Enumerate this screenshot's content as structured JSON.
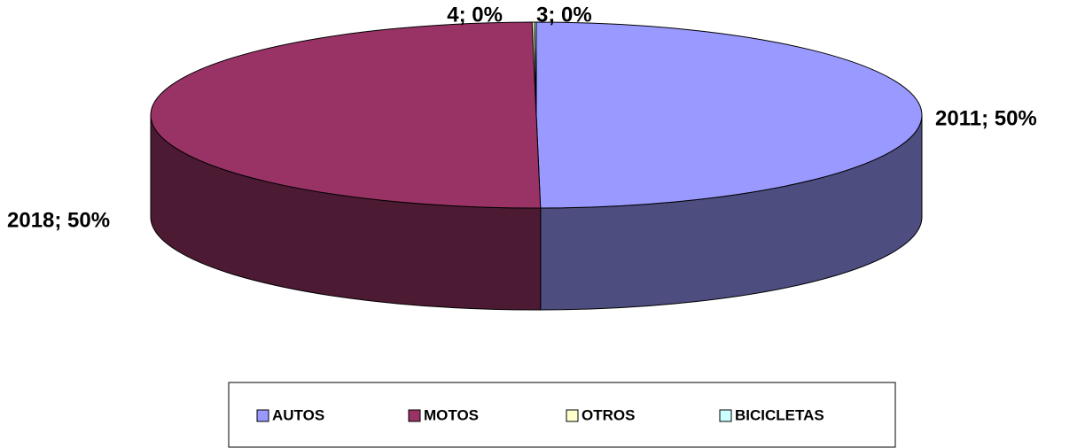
{
  "chart_data": {
    "type": "pie",
    "categories": [
      "AUTOS",
      "MOTOS",
      "OTROS",
      "BICICLETAS"
    ],
    "values": [
      2011,
      2018,
      4,
      3
    ],
    "value_labels": [
      "2011; 50%",
      "2018; 50%",
      "4; 0%",
      "3; 0%"
    ],
    "colors": [
      "#9999ff",
      "#993366",
      "#ffffcc",
      "#ccffff"
    ],
    "legend": "bottom"
  }
}
